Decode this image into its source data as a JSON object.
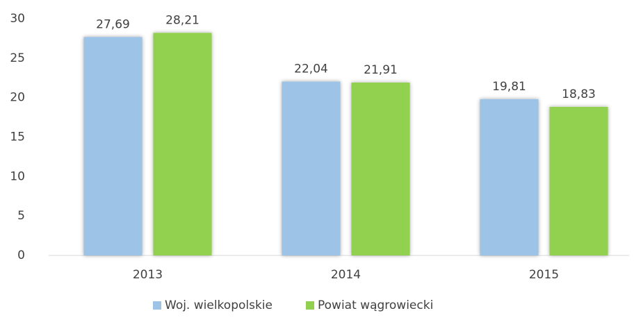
{
  "chart_data": {
    "type": "bar",
    "categories": [
      "2013",
      "2014",
      "2015"
    ],
    "series": [
      {
        "name": "Woj. wielkopolskie",
        "color": "#9dc3e6",
        "values": [
          27.69,
          22.04,
          19.81
        ],
        "value_labels": [
          "27,69",
          "22,04",
          "19,81"
        ]
      },
      {
        "name": "Powiat wągrowiecki",
        "color": "#92d050",
        "values": [
          28.21,
          21.91,
          18.83
        ],
        "value_labels": [
          "28,21",
          "21,91",
          "18,83"
        ]
      }
    ],
    "ylim": [
      0,
      30
    ],
    "yticks": [
      0,
      5,
      10,
      15,
      20,
      25,
      30
    ],
    "grid": false,
    "legend": "bottom"
  }
}
